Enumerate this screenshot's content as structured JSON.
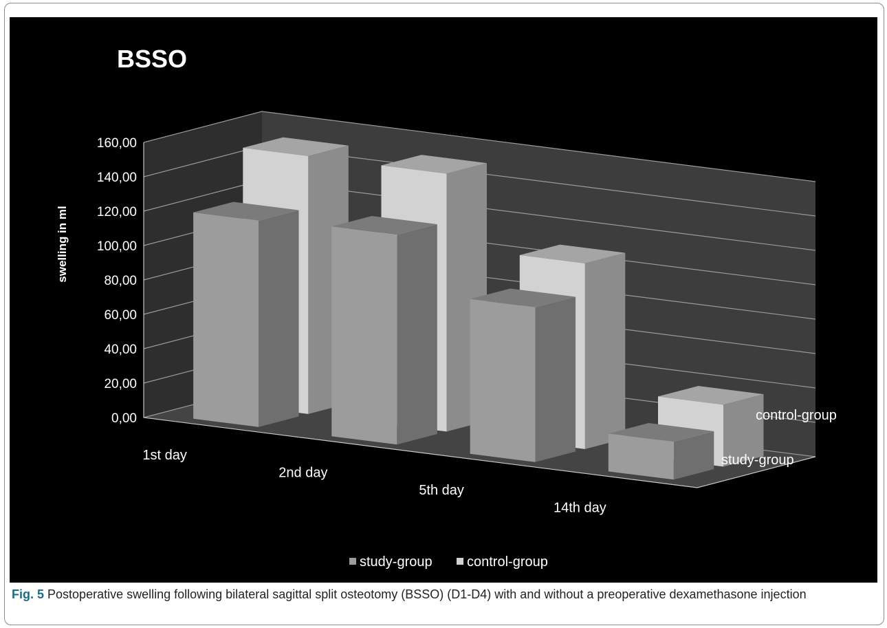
{
  "chart_data": {
    "type": "bar",
    "title": "BSSO",
    "ylabel": "swelling in ml",
    "categories": [
      "1st day",
      "2nd day",
      "5th day",
      "14th day"
    ],
    "series": [
      {
        "name": "study-group",
        "values": [
          120,
          122,
          90,
          22
        ],
        "color": "#9c9c9c"
      },
      {
        "name": "control-group",
        "values": [
          150,
          150,
          108,
          36
        ],
        "color": "#d2d2d2"
      }
    ],
    "ylim": [
      0,
      160
    ],
    "yticks": [
      "0,00",
      "20,00",
      "40,00",
      "60,00",
      "80,00",
      "100,00",
      "120,00",
      "140,00",
      "160,00"
    ],
    "depth_labels": [
      "control-group",
      "study-group"
    ],
    "legend": [
      "study-group",
      "control-group"
    ],
    "legend_position": "bottom",
    "grid": true,
    "three_d": true
  },
  "caption": {
    "label": "Fig. 5",
    "text": "Postoperative swelling following bilateral sagittal split osteotomy (BSSO) (D1-D4) with and without a preoperative dexamethasone injection"
  }
}
